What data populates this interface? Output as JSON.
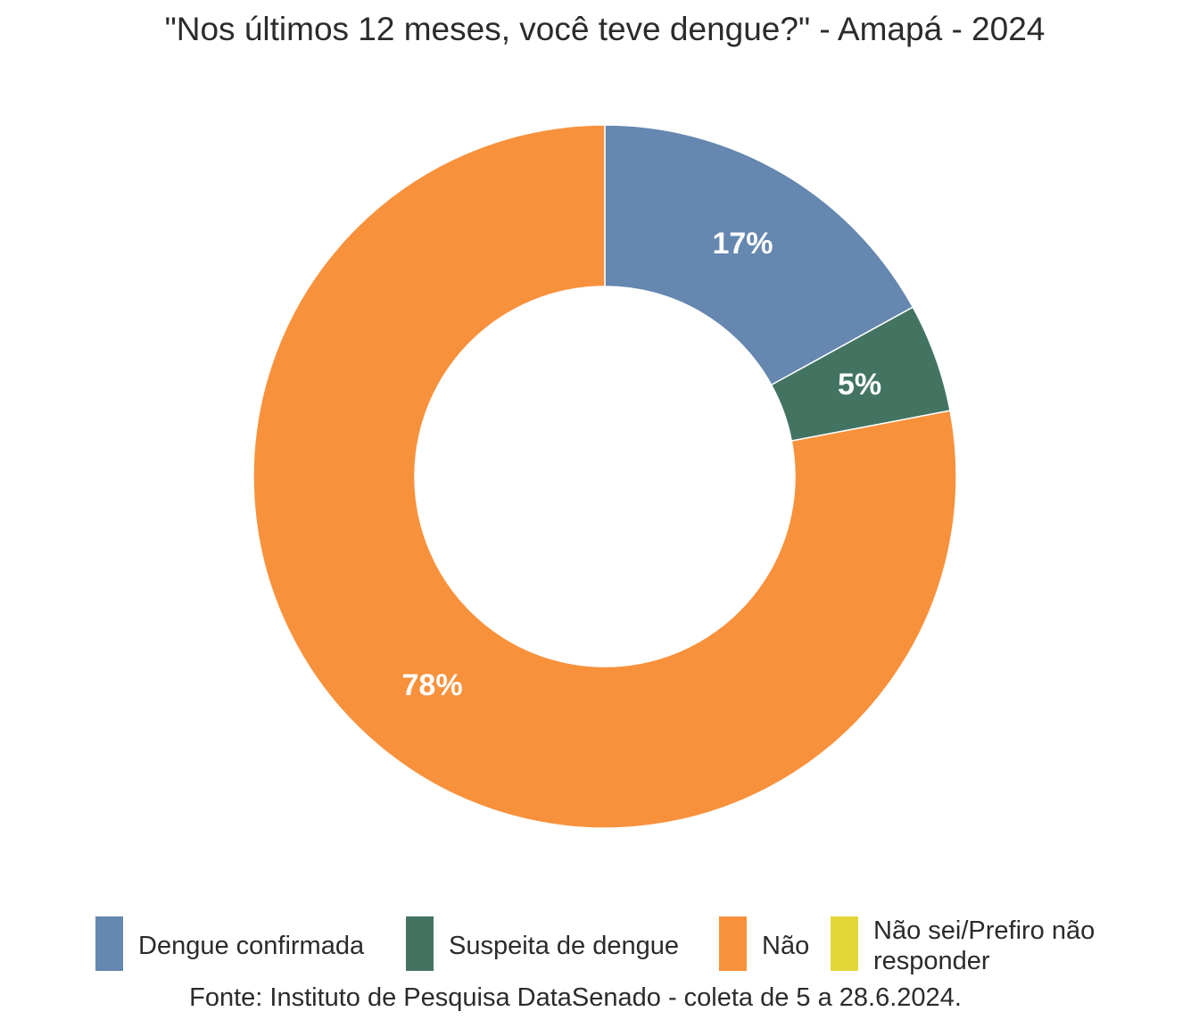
{
  "chart_data": {
    "type": "pie",
    "title": "\"Nos últimos 12 meses, você teve dengue?\" - Amapá - 2024",
    "categories": [
      "Dengue confirmada",
      "Suspeita de dengue",
      "Não",
      "Não sei/Prefiro não responder"
    ],
    "values": [
      17,
      5,
      78,
      0
    ],
    "value_labels": [
      "17%",
      "5%",
      "78%",
      ""
    ],
    "unit": "%",
    "colors": [
      "#6587b0",
      "#437462",
      "#f8913c",
      "#e3d737"
    ],
    "donut": true,
    "legend_position": "bottom",
    "source": "Fonte: Instituto de Pesquisa DataSenado - coleta de 5 a 28.6.2024."
  },
  "legend": {
    "items": [
      {
        "label": "Dengue confirmada",
        "color": "#6587b0"
      },
      {
        "label": "Suspeita de dengue",
        "color": "#437462"
      },
      {
        "label": "Não",
        "color": "#f8913c"
      },
      {
        "label": "Não sei/Prefiro não responder",
        "color": "#e3d737"
      }
    ]
  }
}
